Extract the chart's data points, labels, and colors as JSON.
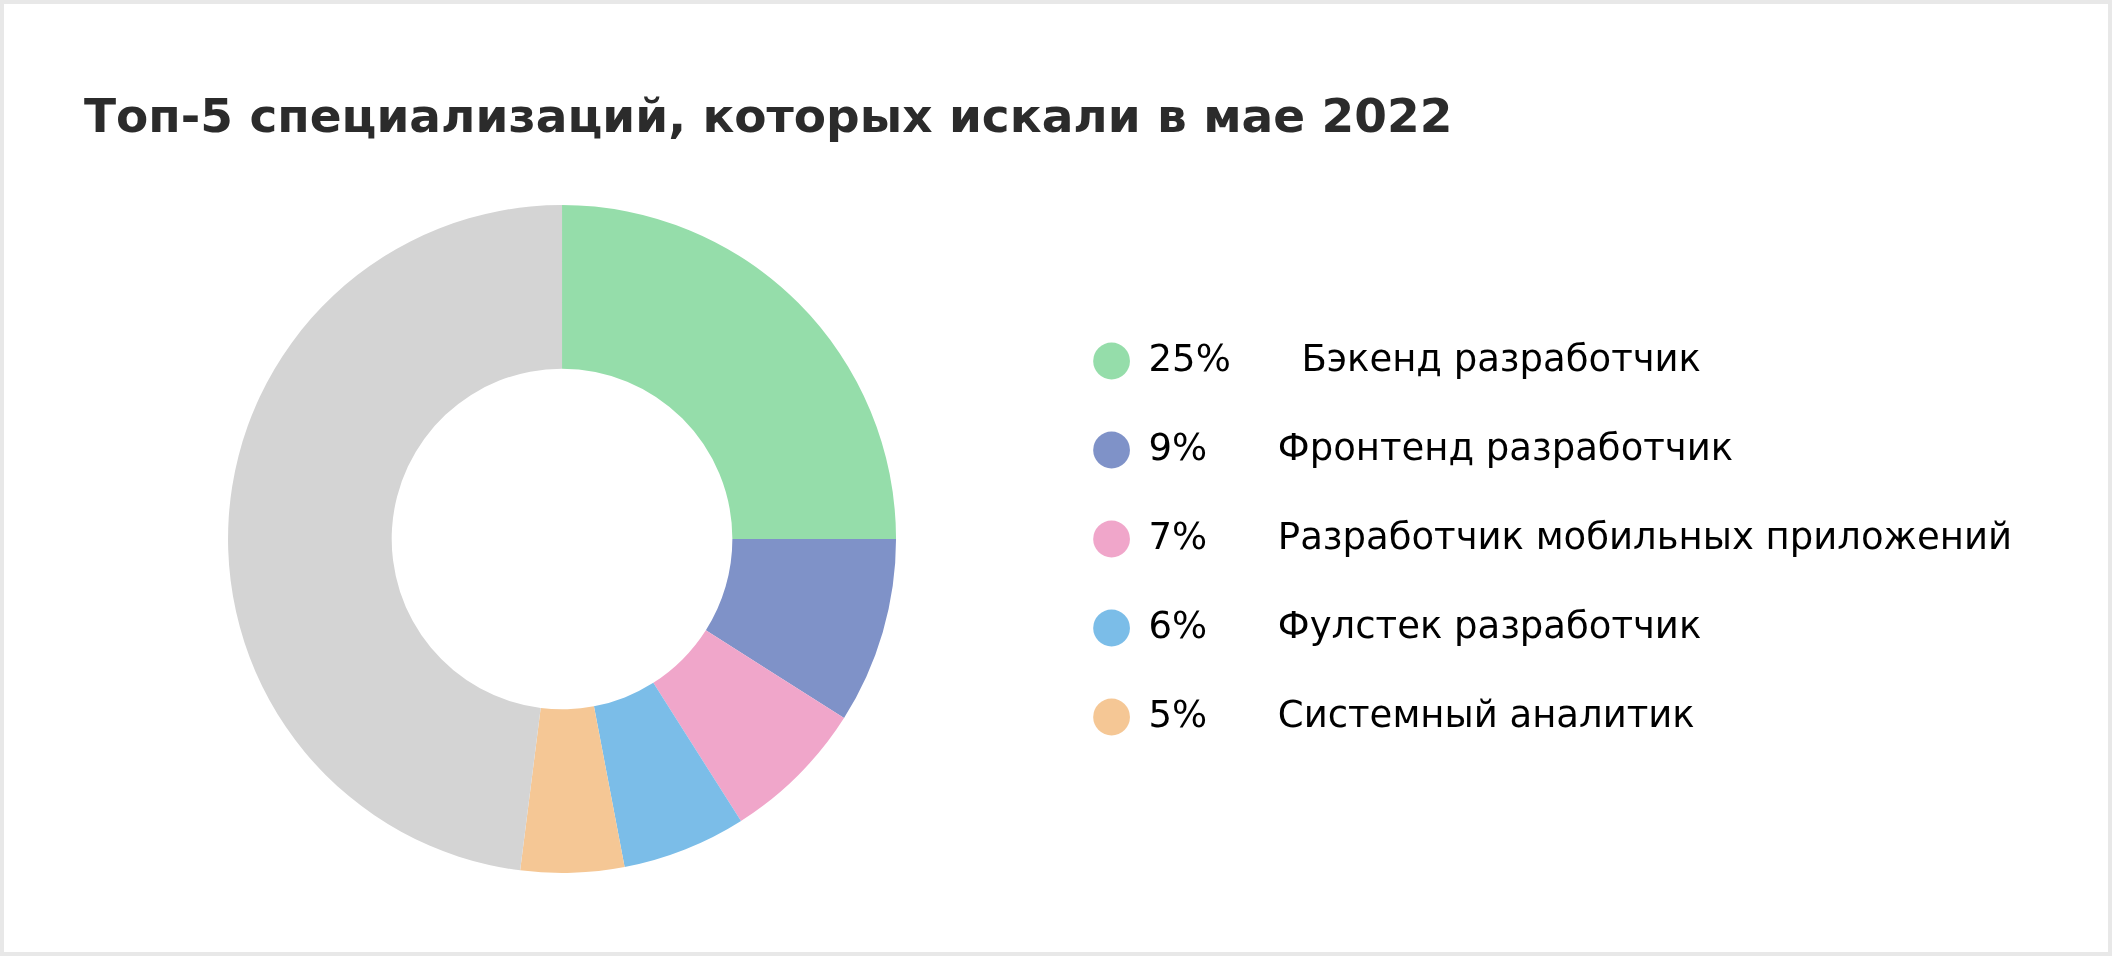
{
  "chart_data": {
    "type": "donut",
    "title": "Топ-5 специализаций, которых искали в мае 2022",
    "categories": [
      "Бэкенд разработчик",
      "Фронтенд разработчик",
      "Разработчик мобильных приложений",
      "Фулстек разработчик",
      "Системный аналитик",
      null
    ],
    "values": [
      25,
      9,
      7,
      6,
      5,
      48
    ],
    "value_labels": [
      "25%",
      "9%",
      "7%",
      "6%",
      "5%",
      null
    ],
    "colors": [
      "#95ddaa",
      "#7f92c8",
      "#f0a6ca",
      "#7bbde8",
      "#f5c795",
      "#d4d4d4"
    ],
    "legend": "right"
  }
}
